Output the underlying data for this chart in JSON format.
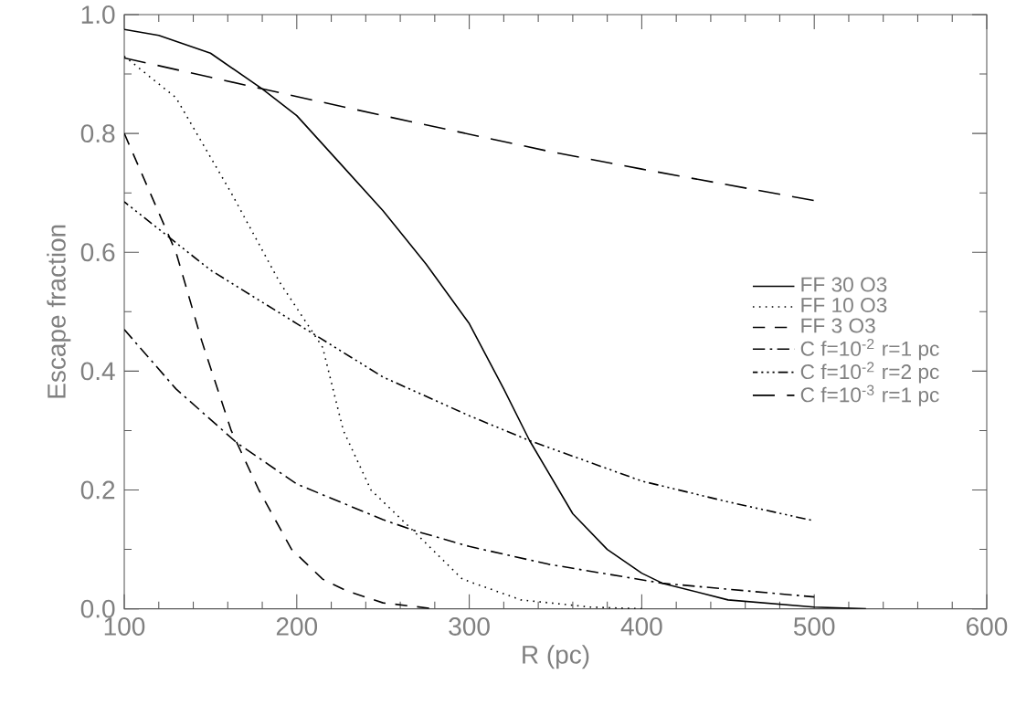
{
  "chart_data": {
    "type": "line",
    "xlabel": "R (pc)",
    "ylabel": "Escape fraction",
    "xlim": [
      100,
      600
    ],
    "ylim": [
      0,
      1.0
    ],
    "xticks": [
      100,
      200,
      300,
      400,
      500,
      600
    ],
    "yticks": [
      {
        "value": 0,
        "label": "0.0"
      },
      0.2,
      0.4,
      0.6,
      0.8,
      {
        "value": 1.0,
        "label": "1.0"
      }
    ],
    "legend": "right",
    "grid": false,
    "marker": "none",
    "series": [
      {
        "name": "FF 30 O3",
        "color": "#000000",
        "line_style": "solid",
        "x": [
          100,
          120,
          150,
          180,
          200,
          225,
          250,
          275,
          300,
          320,
          335,
          360,
          380,
          400,
          412,
          450,
          500,
          530
        ],
        "values": [
          0.975,
          0.965,
          0.935,
          0.875,
          0.83,
          0.75,
          0.67,
          0.58,
          0.48,
          0.37,
          0.283,
          0.16,
          0.1,
          0.06,
          0.043,
          0.015,
          0.003,
          0
        ]
      },
      {
        "name": "FF 10 O3",
        "color": "#000000",
        "line_style": "dotted",
        "x": [
          100,
          130,
          162,
          190,
          215,
          227,
          243,
          268,
          296,
          330,
          370,
          400
        ],
        "values": [
          0.93,
          0.86,
          0.7,
          0.55,
          0.44,
          0.3,
          0.2,
          0.13,
          0.05,
          0.015,
          0.003,
          0
        ]
      },
      {
        "name": "FF 3 O3",
        "color": "#000000",
        "line_style": "dashed",
        "x": [
          100,
          115,
          130,
          145,
          162,
          178,
          197,
          215,
          229,
          250,
          280
        ],
        "values": [
          0.8,
          0.7,
          0.6,
          0.45,
          0.3,
          0.2,
          0.1,
          0.05,
          0.03,
          0.01,
          0
        ]
      },
      {
        "name": "C f=10$^{-2}$ r=1 pc",
        "color": "#000000",
        "line_style": "dashdot",
        "x": [
          100,
          130,
          165,
          200,
          250,
          270,
          300,
          346,
          412,
          450,
          500
        ],
        "values": [
          0.47,
          0.37,
          0.28,
          0.21,
          0.15,
          0.13,
          0.105,
          0.075,
          0.043,
          0.033,
          0.02
        ]
      },
      {
        "name": "C f=10$^{-2}$ r=2 pc",
        "color": "#000000",
        "line_style": "dashdotdot",
        "x": [
          100,
          150,
          200,
          250,
          300,
          335,
          400,
          450,
          500
        ],
        "values": [
          0.685,
          0.57,
          0.48,
          0.39,
          0.325,
          0.283,
          0.215,
          0.18,
          0.148
        ]
      },
      {
        "name": "C f=10$^{-3}$ r=1 pc",
        "color": "#000000",
        "line_style": "longdash",
        "x": [
          100,
          180,
          250,
          346,
          400,
          500
        ],
        "values": [
          0.927,
          0.875,
          0.83,
          0.77,
          0.74,
          0.687
        ]
      }
    ]
  }
}
